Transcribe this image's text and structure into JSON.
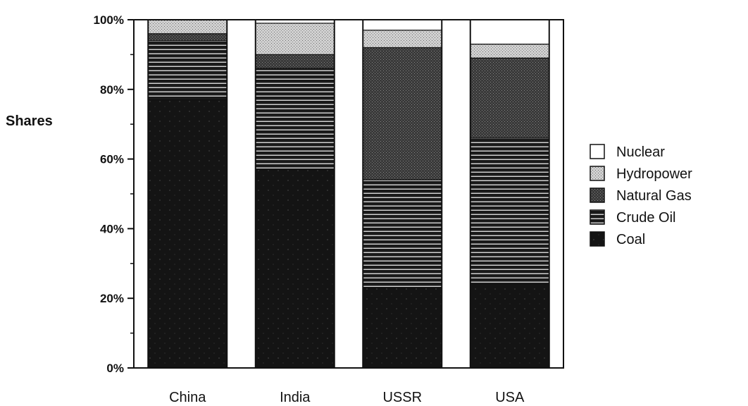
{
  "chart_data": {
    "type": "bar",
    "stacked": true,
    "title": "",
    "xlabel": "",
    "ylabel": "Shares",
    "ylim": [
      0,
      100
    ],
    "y_ticks": [
      "0%",
      "20%",
      "40%",
      "60%",
      "80%",
      "100%"
    ],
    "categories": [
      "China",
      "India",
      "USSR",
      "USA"
    ],
    "series": [
      {
        "name": "Coal",
        "values": [
          77,
          57,
          23,
          24
        ]
      },
      {
        "name": "Crude Oil",
        "values": [
          17,
          29,
          31,
          42
        ]
      },
      {
        "name": "Natural Gas",
        "values": [
          2,
          4,
          38,
          23
        ]
      },
      {
        "name": "Hydropower",
        "values": [
          4,
          9,
          5,
          4
        ]
      },
      {
        "name": "Nuclear",
        "values": [
          0,
          1,
          3,
          7
        ]
      }
    ],
    "legend": {
      "placement": "right",
      "order": [
        "Nuclear",
        "Hydropower",
        "Natural Gas",
        "Crude Oil",
        "Coal"
      ]
    },
    "grid": false,
    "patterns": {
      "Coal": "solid-dark-speckled",
      "Crude Oil": "horizontal-stripes",
      "Natural Gas": "dense-dark-stipple",
      "Hydropower": "light-stipple",
      "Nuclear": "blank"
    },
    "colors": {
      "Coal": "#141414",
      "Crude Oil": "#1a1a1a",
      "Natural Gas": "#3a3a3a",
      "Hydropower": "#c8c8c8",
      "Nuclear": "#ffffff"
    }
  }
}
